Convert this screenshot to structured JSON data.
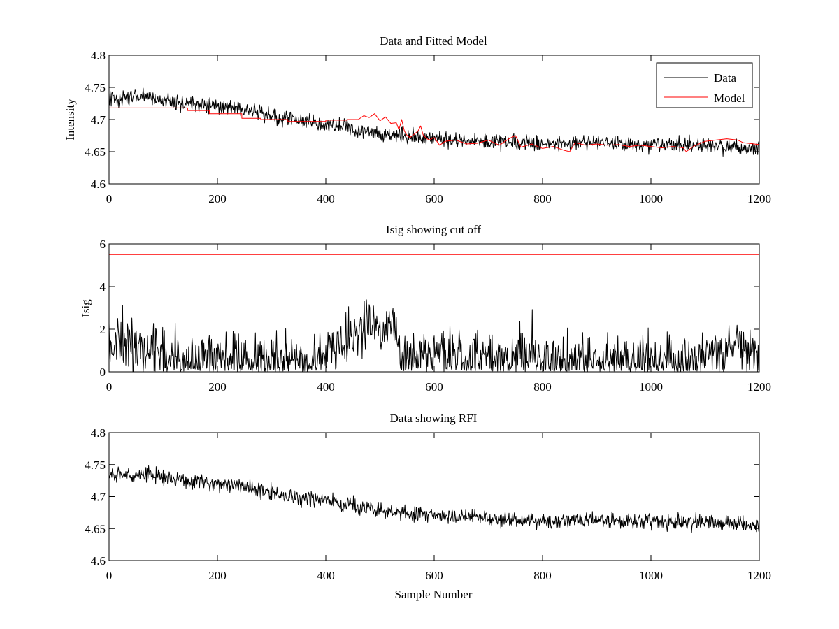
{
  "colors": {
    "data": "#000000",
    "model": "#ff0000",
    "cutoff": "#ff0000",
    "axes": "#000000"
  },
  "chart_data": [
    {
      "type": "line",
      "title": "Data and Fitted Model",
      "xlabel": "",
      "ylabel": "Intensity",
      "xlim": [
        0,
        1200
      ],
      "ylim": [
        4.6,
        4.8
      ],
      "xticks": [
        0,
        200,
        400,
        600,
        800,
        1000,
        1200
      ],
      "yticks": [
        4.6,
        4.65,
        4.7,
        4.75,
        4.8
      ],
      "xtick_labels": [
        "0",
        "200",
        "400",
        "600",
        "800",
        "1000",
        "1200"
      ],
      "ytick_labels": [
        "4.6",
        "4.65",
        "4.7",
        "4.75",
        "4.8"
      ],
      "legend": {
        "position": "top-right",
        "entries": [
          "Data",
          "Model"
        ]
      },
      "series": [
        {
          "name": "Data",
          "color": "#000000",
          "noise": 0.006,
          "trend": {
            "x": [
              0,
              60,
              150,
              250,
              300,
              400,
              500,
              600,
              700,
              800,
              900,
              1000,
              1100,
              1200
            ],
            "y": [
              4.732,
              4.735,
              4.725,
              4.715,
              4.705,
              4.693,
              4.678,
              4.67,
              4.666,
              4.662,
              4.663,
              4.661,
              4.66,
              4.655
            ]
          }
        },
        {
          "name": "Model",
          "color": "#ff0000",
          "x": [
            0,
            145,
            145,
            185,
            185,
            245,
            245,
            280,
            280,
            330,
            330,
            400,
            400,
            440,
            440,
            460,
            470,
            480,
            490,
            500,
            510,
            520,
            530,
            535,
            540,
            545,
            550,
            555,
            560,
            570,
            575,
            580,
            590,
            600,
            610,
            620,
            640,
            660,
            680,
            700,
            720,
            740,
            750,
            760,
            780,
            800,
            820,
            840,
            850,
            860,
            880,
            900,
            920,
            940,
            960,
            980,
            1000,
            1020,
            1040,
            1060,
            1065,
            1080,
            1100,
            1120,
            1140,
            1160,
            1170,
            1200
          ],
          "y": [
            4.718,
            4.718,
            4.714,
            4.714,
            4.709,
            4.709,
            4.702,
            4.702,
            4.7,
            4.7,
            4.697,
            4.697,
            4.699,
            4.699,
            4.7,
            4.7,
            4.706,
            4.703,
            4.709,
            4.698,
            4.704,
            4.694,
            4.695,
            4.684,
            4.7,
            4.682,
            4.675,
            4.672,
            4.675,
            4.682,
            4.69,
            4.675,
            4.668,
            4.672,
            4.66,
            4.666,
            4.668,
            4.662,
            4.663,
            4.668,
            4.66,
            4.671,
            4.675,
            4.657,
            4.662,
            4.655,
            4.658,
            4.652,
            4.65,
            4.664,
            4.66,
            4.662,
            4.66,
            4.661,
            4.658,
            4.66,
            4.658,
            4.656,
            4.658,
            4.656,
            4.65,
            4.659,
            4.666,
            4.668,
            4.67,
            4.668,
            4.664,
            4.661
          ]
        }
      ]
    },
    {
      "type": "line",
      "title": "Isig showing cut off",
      "xlabel": "",
      "ylabel": "Isig",
      "xlim": [
        0,
        1200
      ],
      "ylim": [
        0,
        6
      ],
      "xticks": [
        0,
        200,
        400,
        600,
        800,
        1000,
        1200
      ],
      "yticks": [
        0,
        2,
        4,
        6
      ],
      "xtick_labels": [
        "0",
        "200",
        "400",
        "600",
        "800",
        "1000",
        "1200"
      ],
      "ytick_labels": [
        "0",
        "2",
        "4",
        "6"
      ],
      "cutoff": 5.5,
      "series": [
        {
          "name": "Isig",
          "color": "#000000",
          "noise": 0.6,
          "trend": {
            "x": [
              0,
              60,
              110,
              150,
              300,
              360,
              400,
              440,
              470,
              500,
              530,
              540,
              600,
              700,
              800,
              900,
              1000,
              1050,
              1100,
              1150,
              1200
            ],
            "y": [
              1.1,
              1.3,
              0.7,
              0.5,
              0.6,
              0.4,
              0.7,
              1.3,
              2.0,
              2.2,
              1.9,
              0.7,
              0.7,
              0.7,
              0.6,
              0.5,
              0.5,
              0.4,
              0.8,
              1.0,
              0.8
            ]
          }
        }
      ]
    },
    {
      "type": "line",
      "title": "Data showing RFI",
      "xlabel": "Sample Number",
      "ylabel": "",
      "xlim": [
        0,
        1200
      ],
      "ylim": [
        4.6,
        4.8
      ],
      "xticks": [
        0,
        200,
        400,
        600,
        800,
        1000,
        1200
      ],
      "yticks": [
        4.6,
        4.65,
        4.7,
        4.75,
        4.8
      ],
      "xtick_labels": [
        "0",
        "200",
        "400",
        "600",
        "800",
        "1000",
        "1200"
      ],
      "ytick_labels": [
        "4.6",
        "4.65",
        "4.7",
        "4.75",
        "4.8"
      ],
      "series": [
        {
          "name": "Data",
          "color": "#000000",
          "noise": 0.006,
          "trend": {
            "x": [
              0,
              60,
              150,
              250,
              300,
              400,
              500,
              600,
              700,
              800,
              900,
              1000,
              1100,
              1200
            ],
            "y": [
              4.732,
              4.735,
              4.725,
              4.715,
              4.705,
              4.693,
              4.678,
              4.67,
              4.666,
              4.662,
              4.663,
              4.661,
              4.66,
              4.655
            ]
          }
        }
      ]
    }
  ]
}
